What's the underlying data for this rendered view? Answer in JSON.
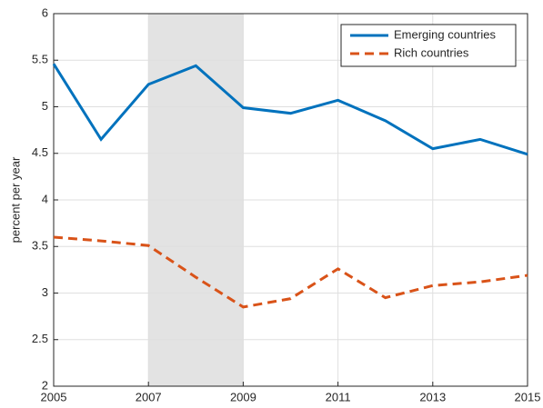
{
  "chart_data": {
    "type": "line",
    "ylabel": "percent per year",
    "x": [
      2005,
      2006,
      2007,
      2008,
      2009,
      2010,
      2011,
      2012,
      2013,
      2014,
      2015
    ],
    "series": [
      {
        "name": "Emerging countries",
        "color": "#0072BD",
        "style": "solid",
        "values": [
          5.46,
          4.65,
          5.24,
          5.44,
          4.99,
          4.93,
          5.07,
          4.85,
          4.55,
          4.65,
          4.49
        ]
      },
      {
        "name": "Rich countries",
        "color": "#D95319",
        "style": "dashed",
        "values": [
          3.6,
          3.56,
          3.51,
          3.17,
          2.85,
          2.94,
          3.26,
          2.95,
          3.08,
          3.12,
          3.19
        ]
      }
    ],
    "xlim": [
      2005,
      2015
    ],
    "xticks": [
      2005,
      2007,
      2009,
      2011,
      2013,
      2015
    ],
    "ylim": [
      2,
      6
    ],
    "yticks": [
      2,
      2.5,
      3,
      3.5,
      4,
      4.5,
      5,
      5.5,
      6
    ],
    "shaded": [
      2007,
      2009
    ],
    "grid": true,
    "legend": "top-right"
  }
}
